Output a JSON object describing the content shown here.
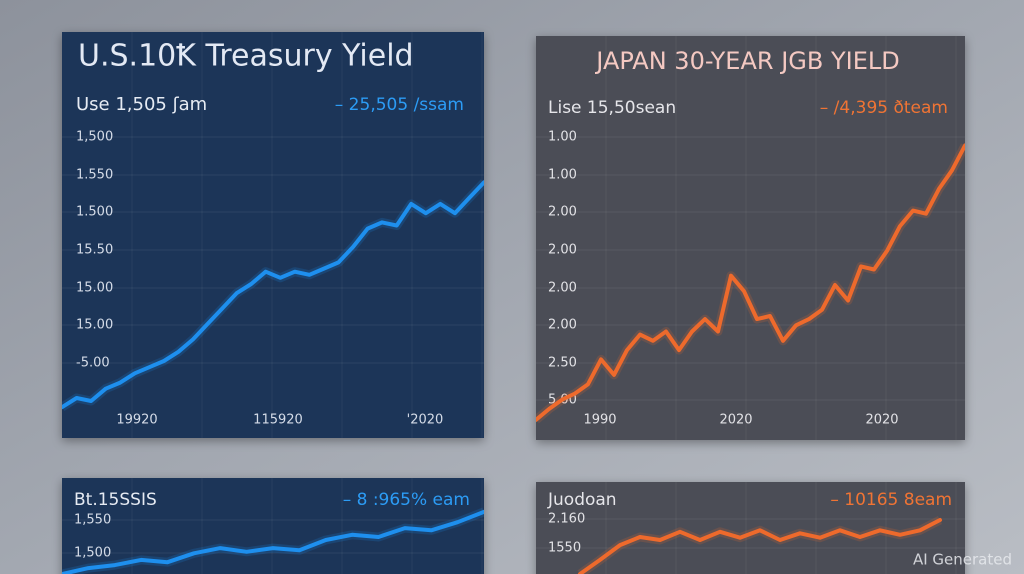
{
  "panels": [
    {
      "title": "U.S.10Ꝁ Treasury Yield",
      "subtitle": "Use 1,505 ʃam",
      "change": "– 25,505 /ssam",
      "y_labels": [
        "1,500",
        "1.550",
        "1.500",
        "15.50",
        "15.00",
        "15.00",
        "-5.00"
      ],
      "x_labels": [
        "19920",
        "115920",
        "'2020"
      ],
      "line": {
        "color": "#1e8fee",
        "ylim": [
          0,
          100
        ],
        "values": [
          10,
          13,
          12,
          16,
          18,
          21,
          23,
          25,
          28,
          32,
          37,
          42,
          47,
          50,
          54,
          52,
          54,
          53,
          55,
          57,
          62,
          68,
          70,
          69,
          76,
          73,
          76,
          73,
          78,
          83
        ]
      }
    },
    {
      "title": "JAPAN 30-YEAR JGB YIELD",
      "subtitle": "Lise 15,50sean",
      "change": "– /4,395 ðteam",
      "y_labels": [
        "1.00",
        "1.00",
        "2.00",
        "2.00",
        "2.00",
        "2.00",
        "2.50",
        "5.00"
      ],
      "x_labels": [
        "1990",
        "2020",
        "2020"
      ],
      "line": {
        "color": "#ee6a2c",
        "ylim": [
          0,
          100
        ],
        "values": [
          6.5,
          10,
          13,
          15,
          18,
          26,
          21,
          29,
          34,
          32,
          35,
          29,
          35,
          39,
          35,
          53,
          48,
          39,
          40,
          32,
          37,
          39,
          42,
          50,
          45,
          56,
          55,
          61,
          69,
          74,
          73,
          81,
          87,
          95
        ]
      }
    },
    {
      "subtitle": "Bt.15SSIS",
      "change": "– 8 :965% eam",
      "y_labels": [
        "1,550",
        "1,500"
      ],
      "line": {
        "color": "#1e8fee",
        "ylim": [
          0,
          100
        ],
        "values": [
          0,
          8,
          12,
          19,
          16,
          28,
          35,
          30,
          35,
          32,
          46,
          53,
          50,
          62,
          59,
          70,
          84
        ]
      }
    },
    {
      "subtitle": "Juodoan",
      "change": "– 10165 8eam",
      "y_labels": [
        "2.160",
        "1550"
      ],
      "line": {
        "color": "#ee6a2c",
        "ylim": [
          0,
          100
        ],
        "values": [
          0,
          19,
          39,
          50,
          46,
          57,
          46,
          57,
          49,
          59,
          46,
          55,
          49,
          59,
          50,
          59,
          53,
          59,
          73
        ]
      }
    }
  ],
  "watermark": "AI Generated"
}
